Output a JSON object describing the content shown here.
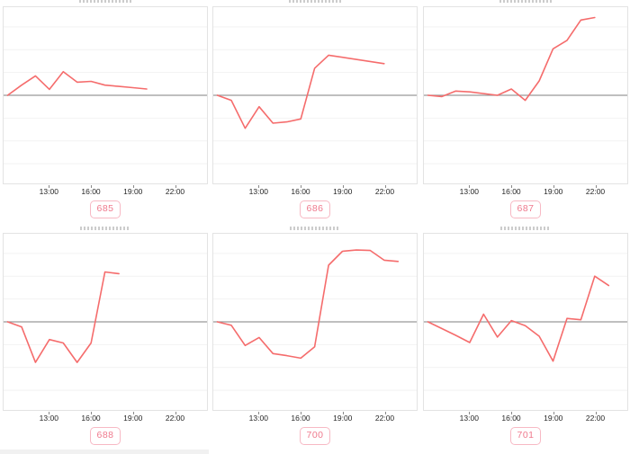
{
  "colors": {
    "line": "#f56c6c",
    "zero_line": "#999999",
    "grid_line": "#f2f2f2",
    "plot_border": "#e3e3e3",
    "axis_label": "#262626",
    "tick_mark": "#8a8a8a",
    "badge_text": "#ef798d",
    "badge_border": "#f7b9c4",
    "badge_bg": "#ffffff",
    "clipped_text": "#9a9a9a",
    "page_bg": "#ffffff"
  },
  "chart_data": {
    "type": "line",
    "layout_hint": "small-multiples grid, 2 rows x 3 columns; each panel is a relative-change line chart with a solid gray zero baseline at vertical center, faint horizontal gridlines, no y-axis labels; clipped gray title sliver above each panel; pink numbered badge below each panel",
    "x_axis": {
      "tick_labels": [
        "13:00",
        "16:00",
        "19:00",
        "22:00"
      ],
      "tick_hours": [
        13,
        16,
        19,
        22
      ]
    },
    "y_axis": {
      "range": [
        -1,
        1
      ],
      "baseline": 0,
      "labels_visible": false,
      "grid": true
    },
    "charts": [
      {
        "label": "685",
        "points": [
          [
            10,
            0
          ],
          [
            11,
            0.12
          ],
          [
            12,
            0.23
          ],
          [
            13,
            0.07
          ],
          [
            14,
            0.28
          ],
          [
            15,
            0.155
          ],
          [
            16,
            0.165
          ],
          [
            17,
            0.12
          ],
          [
            18,
            0.105
          ],
          [
            19,
            0.09
          ],
          [
            20,
            0.075
          ]
        ]
      },
      {
        "label": "686",
        "points": [
          [
            10,
            0
          ],
          [
            11,
            -0.06
          ],
          [
            12,
            -0.39
          ],
          [
            13,
            -0.135
          ],
          [
            14,
            -0.33
          ],
          [
            15,
            -0.315
          ],
          [
            16,
            -0.28
          ],
          [
            17,
            0.32
          ],
          [
            18,
            0.475
          ],
          [
            22,
            0.375
          ]
        ]
      },
      {
        "label": "687",
        "points": [
          [
            10,
            0
          ],
          [
            11,
            -0.015
          ],
          [
            12,
            0.05
          ],
          [
            13,
            0.04
          ],
          [
            15,
            0
          ],
          [
            16,
            0.075
          ],
          [
            17,
            -0.06
          ],
          [
            18,
            0.17
          ],
          [
            19,
            0.55
          ],
          [
            20,
            0.65
          ],
          [
            21,
            0.89
          ],
          [
            22,
            0.92
          ]
        ]
      },
      {
        "label": "688",
        "points": [
          [
            10,
            0
          ],
          [
            11,
            -0.06
          ],
          [
            12,
            -0.48
          ],
          [
            13,
            -0.21
          ],
          [
            14,
            -0.25
          ],
          [
            15,
            -0.48
          ],
          [
            16,
            -0.25
          ],
          [
            17,
            0.59
          ],
          [
            18,
            0.57
          ]
        ]
      },
      {
        "label": "700",
        "points": [
          [
            10,
            0
          ],
          [
            11,
            -0.04
          ],
          [
            12,
            -0.28
          ],
          [
            13,
            -0.185
          ],
          [
            14,
            -0.375
          ],
          [
            15,
            -0.4
          ],
          [
            16,
            -0.43
          ],
          [
            17,
            -0.295
          ],
          [
            18,
            0.67
          ],
          [
            19,
            0.835
          ],
          [
            20,
            0.85
          ],
          [
            21,
            0.845
          ],
          [
            22,
            0.73
          ],
          [
            23,
            0.715
          ]
        ]
      },
      {
        "label": "701",
        "points": [
          [
            10,
            0
          ],
          [
            11,
            -0.08
          ],
          [
            12,
            -0.16
          ],
          [
            13,
            -0.245
          ],
          [
            14,
            0.09
          ],
          [
            15,
            -0.18
          ],
          [
            16,
            0.015
          ],
          [
            17,
            -0.045
          ],
          [
            18,
            -0.17
          ],
          [
            19,
            -0.465
          ],
          [
            20,
            0.04
          ],
          [
            21,
            0.025
          ],
          [
            22,
            0.54
          ],
          [
            23,
            0.43
          ]
        ]
      }
    ]
  }
}
